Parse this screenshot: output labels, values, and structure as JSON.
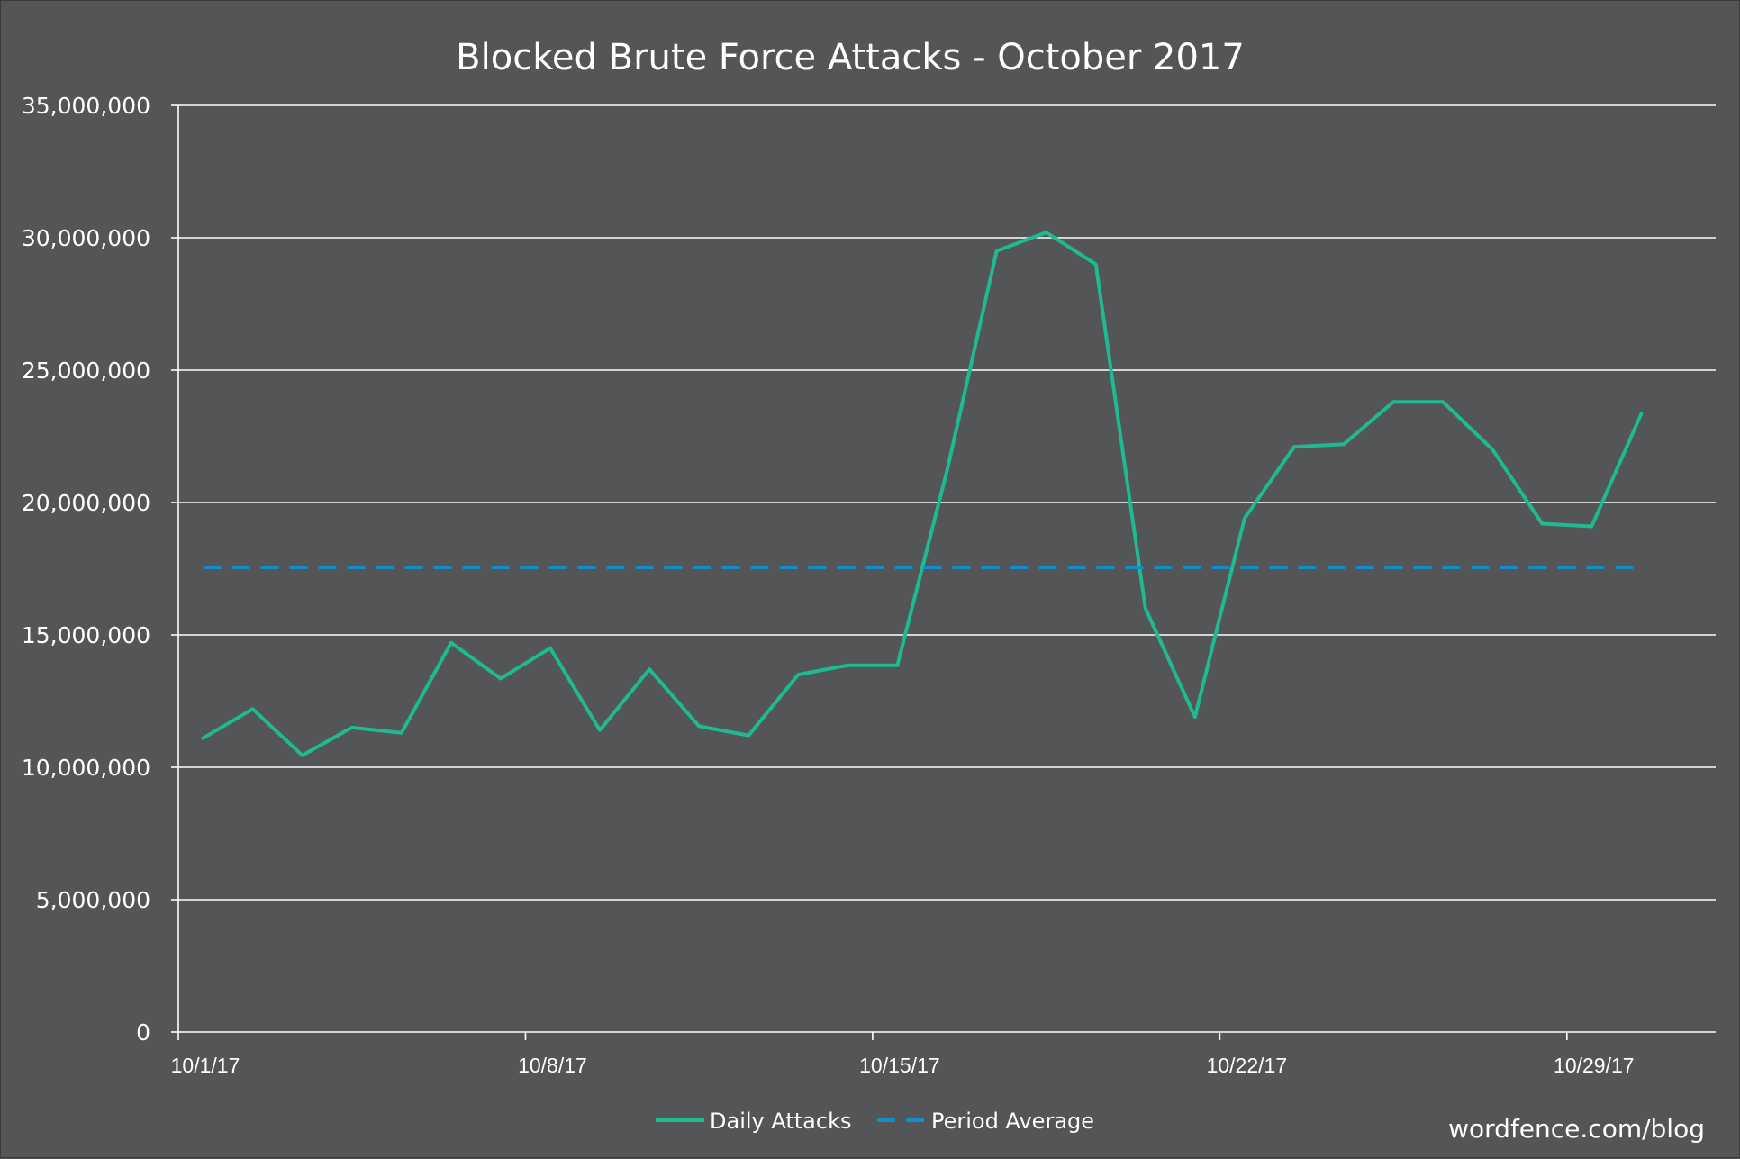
{
  "chart_data": {
    "type": "line",
    "title": "Blocked Brute Force Attacks - October 2017",
    "xlabel": "",
    "ylabel": "",
    "ylim": [
      0,
      35000000
    ],
    "yticks": [
      0,
      5000000,
      10000000,
      15000000,
      20000000,
      25000000,
      30000000,
      35000000
    ],
    "ytick_labels": [
      "0",
      "5,000,000",
      "10,000,000",
      "15,000,000",
      "20,000,000",
      "25,000,000",
      "30,000,000",
      "35,000,000"
    ],
    "x": [
      "10/1/17",
      "10/2/17",
      "10/3/17",
      "10/4/17",
      "10/5/17",
      "10/6/17",
      "10/7/17",
      "10/8/17",
      "10/9/17",
      "10/10/17",
      "10/11/17",
      "10/12/17",
      "10/13/17",
      "10/14/17",
      "10/15/17",
      "10/16/17",
      "10/17/17",
      "10/18/17",
      "10/19/17",
      "10/20/17",
      "10/21/17",
      "10/22/17",
      "10/23/17",
      "10/24/17",
      "10/25/17",
      "10/26/17",
      "10/27/17",
      "10/28/17",
      "10/29/17",
      "10/30/17"
    ],
    "xtick_labels": [
      "10/1/17",
      "10/8/17",
      "10/15/17",
      "10/22/17",
      "10/29/17"
    ],
    "series": [
      {
        "name": "Daily Attacks",
        "color": "#1fb992",
        "style": "solid",
        "values": [
          11100000,
          12200000,
          10450000,
          11500000,
          11300000,
          14700000,
          13350000,
          14500000,
          11400000,
          13700000,
          11550000,
          11200000,
          13500000,
          13850000,
          13850000,
          21200000,
          29500000,
          30200000,
          29000000,
          16000000,
          11900000,
          19400000,
          22100000,
          22200000,
          23800000,
          23800000,
          22000000,
          19200000,
          19100000,
          23350000
        ]
      },
      {
        "name": "Period Average",
        "color": "#0f8fc8",
        "style": "dashed",
        "values": [
          17550000,
          17550000,
          17550000,
          17550000,
          17550000,
          17550000,
          17550000,
          17550000,
          17550000,
          17550000,
          17550000,
          17550000,
          17550000,
          17550000,
          17550000,
          17550000,
          17550000,
          17550000,
          17550000,
          17550000,
          17550000,
          17550000,
          17550000,
          17550000,
          17550000,
          17550000,
          17550000,
          17550000,
          17550000,
          17550000
        ]
      }
    ],
    "grid": true,
    "legend": "bottom-center",
    "watermark": "wordfence.com/blog",
    "background_color": "#545557",
    "gridline_color": "#ffffff"
  }
}
